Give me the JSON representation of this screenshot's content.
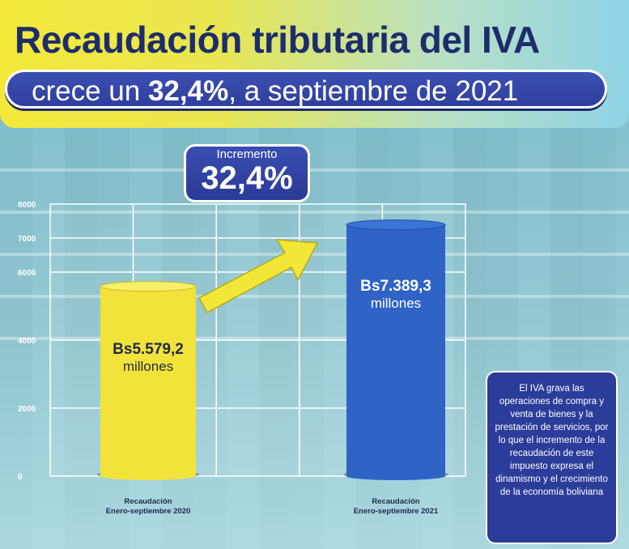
{
  "header": {
    "title": "Recaudación tributaria del IVA",
    "subtitle_pre": "crece un ",
    "subtitle_bold": "32,4%",
    "subtitle_post": ", a septiembre de 2021"
  },
  "increment": {
    "label": "Incremento",
    "value": "32,4%"
  },
  "note": {
    "text": "El IVA grava las operaciones de compra y venta de bienes y la prestación de servicios, por lo que el incremento de la recaudación de este impuesto expresa el dinamismo y el crecimiento de la economía boliviana"
  },
  "colors": {
    "bar_2020": "#f1e33a",
    "bar_2021": "#2f63c6",
    "navy": "#2c3c9a",
    "arrow": "#f2e637"
  },
  "chart_data": {
    "type": "bar",
    "categories": [
      "Recaudación Enero-septiembre 2020",
      "Recaudación Enero-septiembre 2021"
    ],
    "category_lines": [
      [
        "Recaudación",
        "Enero-septiembre 2020"
      ],
      [
        "Recaudación",
        "Enero-septiembre 2021"
      ]
    ],
    "values": [
      5579.2,
      7389.3
    ],
    "value_labels": [
      {
        "amount": "Bs5.579,2",
        "unit": "millones"
      },
      {
        "amount": "Bs7.389,3",
        "unit": "millones"
      }
    ],
    "yticks": [
      0,
      2000,
      4000,
      6000,
      7000,
      8000
    ],
    "ytick_labels": [
      "0",
      "2000",
      "4000",
      "6000",
      "7000",
      "8000"
    ],
    "grid": true
  }
}
